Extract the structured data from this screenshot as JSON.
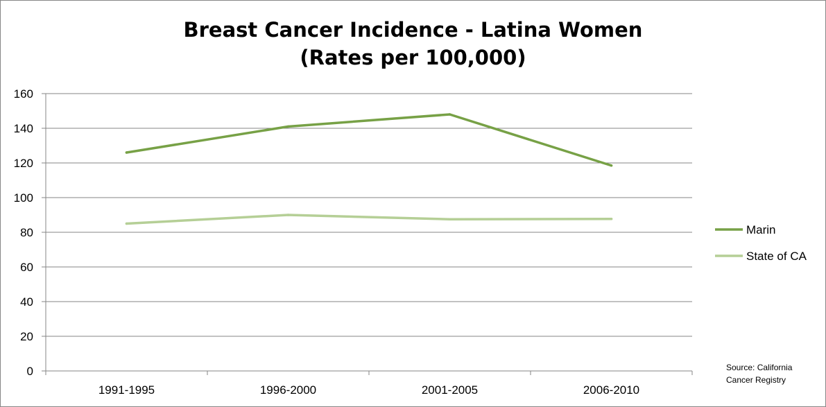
{
  "chart_data": {
    "type": "line",
    "title_line1": "Breast Cancer Incidence - Latina Women",
    "title_line2": "(Rates per 100,000)",
    "categories": [
      "1991-1995",
      "1996-2000",
      "2001-2005",
      "2006-2010"
    ],
    "ylim": [
      0,
      160
    ],
    "yticks": [
      0,
      20,
      40,
      60,
      80,
      100,
      120,
      140,
      160
    ],
    "grid": true,
    "legend_position": "right",
    "series": [
      {
        "name": "Marin",
        "values": [
          126,
          141,
          148,
          118.5
        ],
        "color": "#77A146"
      },
      {
        "name": "State of CA",
        "values": [
          85,
          90,
          87.5,
          87.7
        ],
        "color": "#B5CF96"
      }
    ],
    "source_line1": "Source: California",
    "source_line2": "Cancer Registry"
  }
}
